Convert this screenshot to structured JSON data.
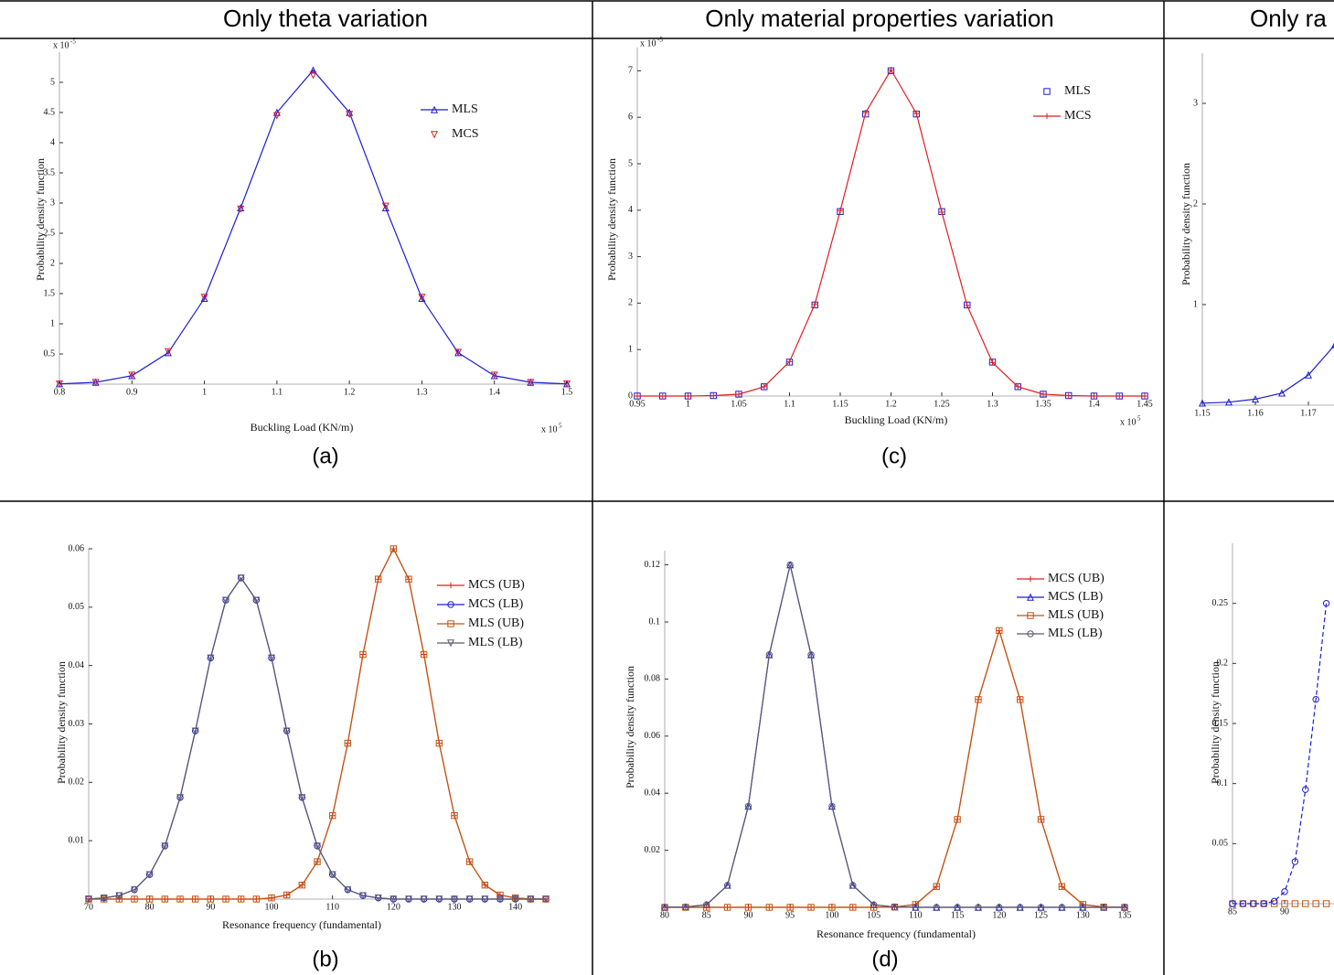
{
  "table": {
    "headers": [
      "Only theta variation",
      "Only material properties variation",
      "Only ra"
    ],
    "captions": [
      "(a)",
      "(c)",
      "(b)",
      "(d)"
    ]
  },
  "chart_data": [
    {
      "type": "line",
      "x": [
        0.8,
        0.85,
        0.9,
        0.95,
        1.0,
        1.05,
        1.1,
        1.15,
        1.2,
        1.25,
        1.3,
        1.35,
        1.4,
        1.45,
        1.5
      ],
      "xlim": [
        0.8,
        1.5
      ],
      "ylim": [
        0,
        5.5
      ],
      "xticks": [
        0.8,
        0.9,
        1,
        1.1,
        1.2,
        1.3,
        1.4,
        1.5
      ],
      "yticks": [
        0.5,
        1,
        1.5,
        2,
        2.5,
        3,
        3.5,
        4,
        4.5,
        5
      ],
      "xlabel": "Buckling Load (KN/m)",
      "ylabel": "Probability density function",
      "x_multiplier": {
        "base": "x 10",
        "exponent": "5"
      },
      "y_multiplier": {
        "base": "x 10",
        "exponent": "-5"
      },
      "series": [
        {
          "name": "MLS",
          "color": "#1c1cd6",
          "style": "line",
          "marker": "triangle",
          "values": [
            0.004,
            0.03,
            0.14,
            0.52,
            1.42,
            2.92,
            4.5,
            5.2,
            4.5,
            2.92,
            1.42,
            0.52,
            0.14,
            0.03,
            0.004
          ]
        },
        {
          "name": "MCS",
          "color": "#e01e1e",
          "style": "markers",
          "marker": "triangle-down",
          "values": [
            0.004,
            0.03,
            0.15,
            0.54,
            1.44,
            2.9,
            4.45,
            5.12,
            4.47,
            2.95,
            1.44,
            0.53,
            0.15,
            0.03,
            0.005
          ]
        }
      ]
    },
    {
      "type": "line",
      "x": [
        0.95,
        0.975,
        1.0,
        1.025,
        1.05,
        1.075,
        1.1,
        1.125,
        1.15,
        1.175,
        1.2,
        1.225,
        1.25,
        1.275,
        1.3,
        1.325,
        1.35,
        1.375,
        1.4,
        1.425,
        1.45
      ],
      "xlim": [
        0.95,
        1.45
      ],
      "ylim": [
        0,
        7.5
      ],
      "xticks": [
        0.95,
        1,
        1.05,
        1.1,
        1.15,
        1.2,
        1.25,
        1.3,
        1.35,
        1.4,
        1.45
      ],
      "yticks": [
        0,
        1,
        2,
        3,
        4,
        5,
        6,
        7
      ],
      "xlabel": "Buckling Load (KN/m)",
      "ylabel": "Probability density function",
      "x_multiplier": {
        "base": "x 10",
        "exponent": "5"
      },
      "y_multiplier": {
        "base": "x 10",
        "exponent": "-5"
      },
      "series": [
        {
          "name": "MLS",
          "color": "#1c1cd6",
          "style": "markers",
          "marker": "square",
          "values": [
            0,
            0,
            0,
            0.01,
            0.04,
            0.2,
            0.73,
            1.96,
            3.97,
            6.07,
            7,
            6.07,
            3.97,
            1.96,
            0.73,
            0.2,
            0.04,
            0.01,
            0,
            0,
            0
          ]
        },
        {
          "name": "MCS",
          "color": "#e01e1e",
          "style": "line",
          "marker": "plus",
          "values": [
            0,
            0,
            0,
            0.01,
            0.04,
            0.2,
            0.74,
            1.98,
            3.99,
            6.1,
            7.02,
            6.08,
            3.96,
            1.95,
            0.72,
            0.2,
            0.04,
            0.01,
            0,
            0,
            0
          ]
        }
      ]
    },
    {
      "type": "line",
      "x": [
        1.15,
        1.155,
        1.16,
        1.165,
        1.17,
        1.175
      ],
      "xlim": [
        1.15,
        1.18
      ],
      "ylim": [
        0,
        3.5
      ],
      "xticks": [
        1.15,
        1.16,
        1.17
      ],
      "yticks": [
        1,
        2,
        3
      ],
      "ylabel": "Probability density function",
      "series": [
        {
          "color": "#1c1cd6",
          "style": "line",
          "marker": "triangle",
          "values": [
            0.02,
            0.03,
            0.06,
            0.12,
            0.3,
            0.6
          ]
        }
      ]
    },
    {
      "type": "line",
      "x": [
        70,
        72.5,
        75,
        77.5,
        80,
        82.5,
        85,
        87.5,
        90,
        92.5,
        95,
        97.5,
        100,
        102.5,
        105,
        107.5,
        110,
        112.5,
        115,
        117.5,
        120,
        122.5,
        125,
        127.5,
        130,
        132.5,
        135,
        137.5,
        140,
        142.5,
        145
      ],
      "xlim": [
        70,
        145
      ],
      "ylim": [
        0,
        0.06
      ],
      "xticks": [
        70,
        80,
        90,
        100,
        110,
        120,
        130,
        140
      ],
      "yticks": [
        0.01,
        0.02,
        0.03,
        0.04,
        0.05,
        0.06
      ],
      "xlabel": "Resonance frequency (fundamental)",
      "ylabel": "Probability density function",
      "series": [
        {
          "name": "MCS (UB)",
          "color": "#e01e1e",
          "style": "line",
          "marker": "plus",
          "values": [
            0,
            0,
            0,
            0,
            0,
            0,
            0,
            0,
            0,
            0,
            0,
            0,
            0.0002,
            0.0007,
            0.0024,
            0.0064,
            0.0143,
            0.0267,
            0.0419,
            0.0548,
            0.06,
            0.0548,
            0.0419,
            0.0267,
            0.0143,
            0.0064,
            0.0024,
            0.0007,
            0.0002,
            0,
            0
          ]
        },
        {
          "name": "MCS (LB)",
          "color": "#1c1cd6",
          "style": "line",
          "marker": "circle",
          "values": [
            0,
            0.0002,
            0.0006,
            0.0016,
            0.0042,
            0.0091,
            0.0174,
            0.0288,
            0.0413,
            0.0512,
            0.055,
            0.0512,
            0.0413,
            0.0288,
            0.0174,
            0.0091,
            0.0042,
            0.0016,
            0.0006,
            0.0002,
            0,
            0,
            0,
            0,
            0,
            0,
            0,
            0,
            0,
            0,
            0
          ]
        },
        {
          "name": "MLS (UB)",
          "color": "#c0560f",
          "style": "line",
          "marker": "square",
          "values": [
            0,
            0,
            0,
            0,
            0,
            0,
            0,
            0,
            0,
            0,
            0,
            0,
            0.0002,
            0.0007,
            0.0024,
            0.0064,
            0.0143,
            0.0267,
            0.0419,
            0.0548,
            0.06,
            0.0548,
            0.0419,
            0.0267,
            0.0143,
            0.0064,
            0.0024,
            0.0007,
            0.0002,
            0,
            0
          ]
        },
        {
          "name": "MLS (LB)",
          "color": "#5a5a6a",
          "style": "line",
          "marker": "triangle-down",
          "values": [
            0,
            0.0002,
            0.0006,
            0.0016,
            0.0042,
            0.0091,
            0.0174,
            0.0288,
            0.0413,
            0.0512,
            0.055,
            0.0512,
            0.0413,
            0.0288,
            0.0174,
            0.0091,
            0.0042,
            0.0016,
            0.0006,
            0.0002,
            0,
            0,
            0,
            0,
            0,
            0,
            0,
            0,
            0,
            0,
            0
          ]
        }
      ]
    },
    {
      "type": "line",
      "x": [
        80,
        82.5,
        85,
        87.5,
        90,
        92.5,
        95,
        97.5,
        100,
        102.5,
        105,
        107.5,
        110,
        112.5,
        115,
        117.5,
        120,
        122.5,
        125,
        127.5,
        130,
        132.5,
        135
      ],
      "xlim": [
        80,
        135
      ],
      "ylim": [
        0,
        0.125
      ],
      "xticks": [
        80,
        85,
        90,
        95,
        100,
        105,
        110,
        115,
        120,
        125,
        130,
        135
      ],
      "yticks": [
        0.02,
        0.04,
        0.06,
        0.08,
        0.1,
        0.12
      ],
      "xlabel": "Resonance frequency (fundamental)",
      "ylabel": "Probability density function",
      "series": [
        {
          "name": "MCS (UB)",
          "color": "#e01e1e",
          "style": "line",
          "marker": "plus",
          "values": [
            0,
            0,
            0,
            0,
            0,
            0,
            0,
            0,
            0,
            0,
            0,
            0.0001,
            0.001,
            0.0073,
            0.0308,
            0.0728,
            0.097,
            0.0728,
            0.0308,
            0.0073,
            0.001,
            0.0001,
            0
          ]
        },
        {
          "name": "MCS (LB)",
          "color": "#1c1cd6",
          "style": "line",
          "marker": "triangle",
          "values": [
            0,
            0.0001,
            0.0009,
            0.0077,
            0.0354,
            0.0885,
            0.12,
            0.0885,
            0.0354,
            0.0077,
            0.0009,
            0.0001,
            0,
            0,
            0,
            0,
            0,
            0,
            0,
            0,
            0,
            0,
            0
          ]
        },
        {
          "name": "MLS (UB)",
          "color": "#c0560f",
          "style": "line",
          "marker": "square",
          "values": [
            0,
            0,
            0,
            0,
            0,
            0,
            0,
            0,
            0,
            0,
            0,
            0.0001,
            0.001,
            0.0073,
            0.0308,
            0.0728,
            0.097,
            0.0728,
            0.0308,
            0.0073,
            0.001,
            0.0001,
            0
          ]
        },
        {
          "name": "MLS (LB)",
          "color": "#5a5a6a",
          "style": "line",
          "marker": "circle",
          "values": [
            0,
            0.0001,
            0.0009,
            0.0077,
            0.0354,
            0.0885,
            0.12,
            0.0885,
            0.0354,
            0.0077,
            0.0009,
            0.0001,
            0,
            0,
            0,
            0,
            0,
            0,
            0,
            0,
            0,
            0,
            0
          ]
        }
      ]
    },
    {
      "type": "line",
      "x": [
        85,
        86,
        87,
        88,
        89,
        90,
        91,
        92,
        93,
        94
      ],
      "xlim": [
        85,
        95
      ],
      "ylim": [
        0,
        0.3
      ],
      "xticks": [
        85,
        90
      ],
      "yticks": [
        0.05,
        0.1,
        0.15,
        0.2,
        0.25
      ],
      "ylabel": "Probability density function",
      "series": [
        {
          "color": "#c0560f",
          "style": "markers",
          "marker": "square",
          "values": [
            0,
            0,
            0,
            0,
            0,
            0,
            0,
            0,
            0,
            0
          ]
        },
        {
          "color": "#1c1cd6",
          "style": "dashed",
          "marker": "circle",
          "values": [
            0,
            0,
            0,
            0,
            0.002,
            0.01,
            0.035,
            0.095,
            0.17,
            0.25
          ]
        }
      ]
    }
  ]
}
